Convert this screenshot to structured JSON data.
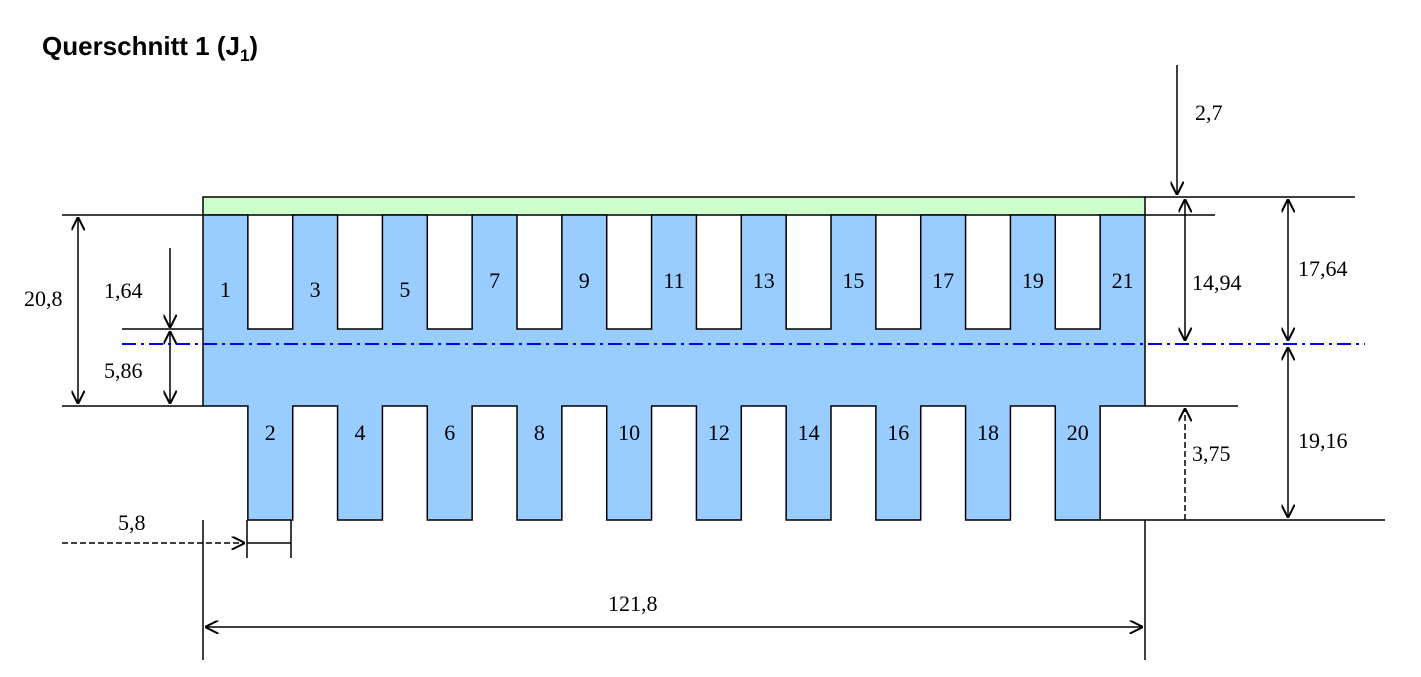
{
  "header": {
    "title": {
      "text": "Querschnitt 1 (J",
      "subscript": "1",
      "suffix": ")"
    }
  },
  "bars": {
    "labels": [
      "1",
      "2",
      "3",
      "4",
      "5",
      "6",
      "7",
      "8",
      "9",
      "10",
      "11",
      "12",
      "13",
      "14",
      "15",
      "16",
      "17",
      "18",
      "19",
      "20",
      "21"
    ]
  },
  "dimensions": {
    "top_plate": "2,7",
    "total_height": "20,8",
    "upper_offset": "1,64",
    "overlap": "5,86",
    "bar_width": "5,8",
    "total_width": "121,8",
    "upper_to_axis": "14,94",
    "lower_extension": "3,75",
    "plate_to_axis": "17,64",
    "axis_to_bottom": "19,16"
  }
}
